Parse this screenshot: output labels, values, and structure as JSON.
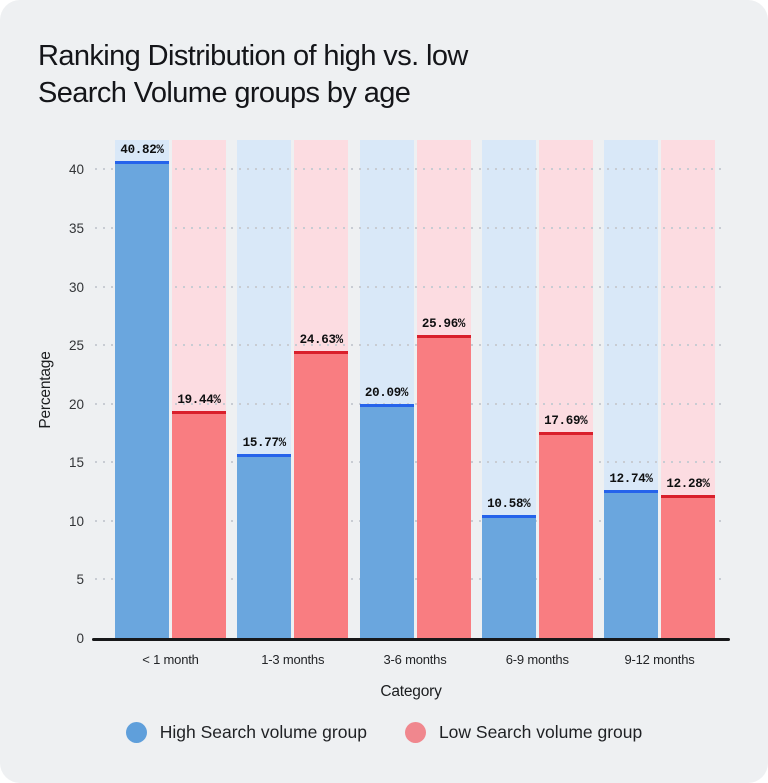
{
  "page": {
    "background": "#eef0f2",
    "title": "Ranking Distribution of high vs. low\nSearch Volume groups by age",
    "title_color": "#141519"
  },
  "chart_data": {
    "type": "bar",
    "title": "Ranking Distribution of high vs. low Search Volume groups by age",
    "categories": [
      "< 1 month",
      "1-3 months",
      "3-6 months",
      "6-9 months",
      "9-12 months"
    ],
    "series": [
      {
        "name": "High Search volume group",
        "values": [
          40.82,
          15.77,
          20.09,
          10.58,
          12.74
        ],
        "labels": [
          "40.82%",
          "15.77%",
          "20.09%",
          "10.58%",
          "12.74%"
        ],
        "bar_color": "#6aa6de",
        "bar_top_color": "#2563eb",
        "column_bg_color": "#d9e8f8"
      },
      {
        "name": "Low Search volume group",
        "values": [
          19.44,
          24.63,
          25.96,
          17.69,
          12.28
        ],
        "labels": [
          "19.44%",
          "24.63%",
          "25.96%",
          "17.69%",
          "12.28%"
        ],
        "bar_color": "#f97d81",
        "bar_top_color": "#d91f2b",
        "column_bg_color": "#fcdce1"
      }
    ],
    "xlabel": "Category",
    "ylabel": "Percentage",
    "yticks": [
      0,
      5,
      10,
      15,
      20,
      25,
      30,
      35,
      40
    ],
    "ylim": [
      0,
      42.6
    ],
    "grid": "horizontal-dotted",
    "gridline_color": "#c8ccd3",
    "axis_line_color": "#17181a",
    "value_label_color": "#0e0f10",
    "tick_label_color": "#323437"
  },
  "legend": {
    "items": [
      {
        "label": "High Search volume group",
        "swatch_color": "#5f9fdb"
      },
      {
        "label": "Low Search volume group",
        "swatch_color": "#f0878e"
      }
    ]
  }
}
